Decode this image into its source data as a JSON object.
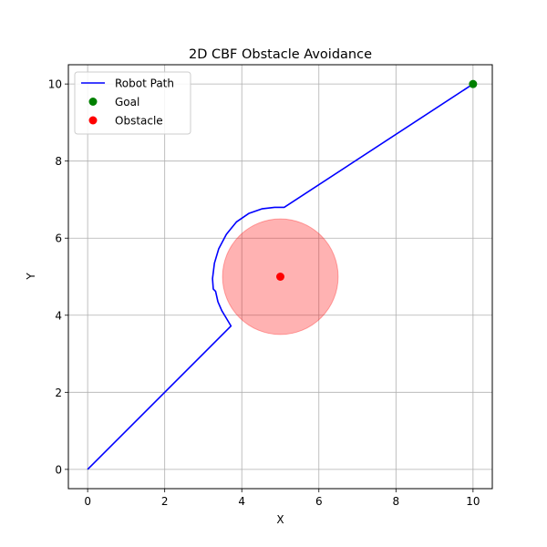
{
  "chart_data": {
    "type": "line",
    "title": "2D CBF Obstacle Avoidance",
    "xlabel": "X",
    "ylabel": "Y",
    "xlim": [
      -0.5,
      10.5
    ],
    "ylim": [
      -0.5,
      10.5
    ],
    "xticks": [
      0,
      2,
      4,
      6,
      8,
      10
    ],
    "yticks": [
      0,
      2,
      4,
      6,
      8,
      10
    ],
    "xtick_labels": [
      "0",
      "2",
      "4",
      "6",
      "8",
      "10"
    ],
    "ytick_labels": [
      "0",
      "2",
      "4",
      "6",
      "8",
      "10"
    ],
    "grid": true,
    "legend_position": "top-left",
    "aspect": "equal",
    "series": [
      {
        "name": "Robot Path",
        "kind": "line",
        "color": "#0000ff",
        "points": [
          [
            0,
            0
          ],
          [
            3.72,
            3.72
          ],
          [
            3.6,
            3.92
          ],
          [
            3.48,
            4.12
          ],
          [
            3.38,
            4.35
          ],
          [
            3.32,
            4.62
          ],
          [
            3.26,
            4.68
          ],
          [
            3.24,
            4.95
          ],
          [
            3.29,
            5.35
          ],
          [
            3.4,
            5.72
          ],
          [
            3.6,
            6.1
          ],
          [
            3.86,
            6.42
          ],
          [
            4.18,
            6.64
          ],
          [
            4.52,
            6.76
          ],
          [
            4.85,
            6.8
          ],
          [
            5.1,
            6.8
          ],
          [
            10,
            10
          ]
        ]
      },
      {
        "name": "Goal",
        "kind": "scatter",
        "color": "#008000",
        "points": [
          [
            10,
            10
          ]
        ]
      },
      {
        "name": "Obstacle",
        "kind": "scatter",
        "color": "#ff0000",
        "points": [
          [
            5,
            5
          ]
        ]
      }
    ],
    "obstacle_region": {
      "center": [
        5,
        5
      ],
      "radius": 1.5,
      "color": "#ff0000",
      "alpha": 0.3
    }
  }
}
